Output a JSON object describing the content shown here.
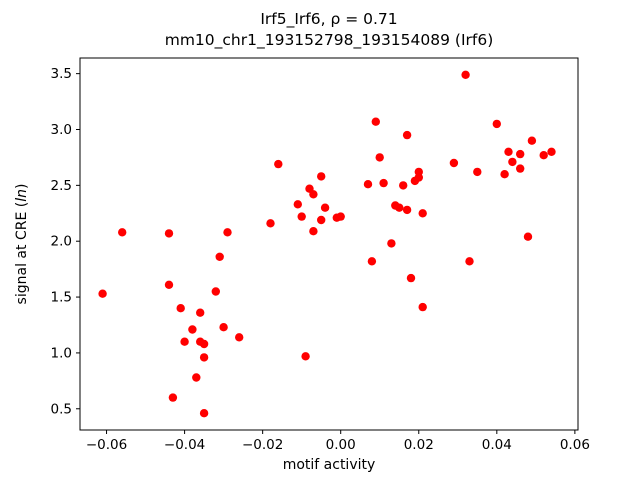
{
  "title": {
    "line1": "Irf5_Irf6, ρ = 0.71",
    "line2": "mm10_chr1_193152798_193154089 (Irf6)"
  },
  "chart_data": {
    "type": "scatter",
    "title": "Irf5_Irf6, ρ = 0.71\nmm10_chr1_193152798_193154089 (Irf6)",
    "xlabel": "motif activity",
    "ylabel": "signal at CRE (ln)",
    "ylabel_parts": {
      "prefix": "signal at CRE (",
      "italic": "ln",
      "suffix": ")"
    },
    "marker_color": "#ff0000",
    "marker_radius": 4.2,
    "grid": false,
    "legend": "none",
    "xlim": [
      -0.0668,
      0.0608
    ],
    "ylim": [
      0.31,
      3.64
    ],
    "xticks": [
      {
        "v": -0.06,
        "label": "−0.06"
      },
      {
        "v": -0.04,
        "label": "−0.04"
      },
      {
        "v": -0.02,
        "label": "−0.02"
      },
      {
        "v": 0.0,
        "label": "0.00"
      },
      {
        "v": 0.02,
        "label": "0.02"
      },
      {
        "v": 0.04,
        "label": "0.04"
      },
      {
        "v": 0.06,
        "label": "0.06"
      }
    ],
    "yticks": [
      {
        "v": 0.5,
        "label": "0.5"
      },
      {
        "v": 1.0,
        "label": "1.0"
      },
      {
        "v": 1.5,
        "label": "1.5"
      },
      {
        "v": 2.0,
        "label": "2.0"
      },
      {
        "v": 2.5,
        "label": "2.5"
      },
      {
        "v": 3.0,
        "label": "3.0"
      },
      {
        "v": 3.5,
        "label": "3.5"
      }
    ],
    "points": [
      [
        -0.061,
        1.53
      ],
      [
        -0.056,
        2.08
      ],
      [
        -0.044,
        2.07
      ],
      [
        -0.044,
        1.61
      ],
      [
        -0.043,
        0.6
      ],
      [
        -0.041,
        1.4
      ],
      [
        -0.04,
        1.1
      ],
      [
        -0.038,
        1.21
      ],
      [
        -0.037,
        0.78
      ],
      [
        -0.036,
        1.36
      ],
      [
        -0.036,
        1.1
      ],
      [
        -0.035,
        0.96
      ],
      [
        -0.035,
        1.08
      ],
      [
        -0.035,
        0.46
      ],
      [
        -0.032,
        1.55
      ],
      [
        -0.031,
        1.86
      ],
      [
        -0.03,
        1.23
      ],
      [
        -0.029,
        2.08
      ],
      [
        -0.026,
        1.14
      ],
      [
        -0.018,
        2.16
      ],
      [
        -0.016,
        2.69
      ],
      [
        -0.011,
        2.33
      ],
      [
        -0.01,
        2.22
      ],
      [
        -0.009,
        0.97
      ],
      [
        -0.008,
        2.47
      ],
      [
        -0.007,
        2.42
      ],
      [
        -0.007,
        2.09
      ],
      [
        -0.005,
        2.58
      ],
      [
        -0.005,
        2.19
      ],
      [
        -0.004,
        2.3
      ],
      [
        -0.001,
        2.21
      ],
      [
        0.0,
        2.22
      ],
      [
        0.007,
        2.51
      ],
      [
        0.008,
        1.82
      ],
      [
        0.009,
        3.07
      ],
      [
        0.01,
        2.75
      ],
      [
        0.011,
        2.52
      ],
      [
        0.013,
        1.98
      ],
      [
        0.014,
        2.32
      ],
      [
        0.015,
        2.3
      ],
      [
        0.016,
        2.5
      ],
      [
        0.017,
        2.28
      ],
      [
        0.017,
        2.95
      ],
      [
        0.018,
        1.67
      ],
      [
        0.019,
        2.54
      ],
      [
        0.02,
        2.62
      ],
      [
        0.02,
        2.57
      ],
      [
        0.021,
        2.25
      ],
      [
        0.021,
        1.41
      ],
      [
        0.029,
        2.7
      ],
      [
        0.032,
        3.49
      ],
      [
        0.033,
        1.82
      ],
      [
        0.035,
        2.62
      ],
      [
        0.04,
        3.05
      ],
      [
        0.042,
        2.6
      ],
      [
        0.043,
        2.8
      ],
      [
        0.044,
        2.71
      ],
      [
        0.046,
        2.78
      ],
      [
        0.046,
        2.65
      ],
      [
        0.048,
        2.04
      ],
      [
        0.049,
        2.9
      ],
      [
        0.052,
        2.77
      ],
      [
        0.054,
        2.8
      ]
    ]
  }
}
